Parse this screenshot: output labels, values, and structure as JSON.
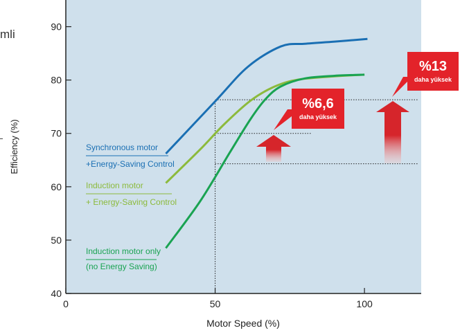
{
  "edge": {
    "partial_text": "mli"
  },
  "chart_data": {
    "type": "line",
    "title": "",
    "xlabel": "Motor Speed (%)",
    "ylabel": "Efficiency (%)",
    "xlim": [
      0,
      119
    ],
    "ylim": [
      40,
      95
    ],
    "grid": false,
    "x_ticks": [
      0,
      50,
      100
    ],
    "y_ticks": [
      40,
      50,
      60,
      70,
      80,
      90
    ],
    "colors": {
      "plot_bg": "#cfe0ec",
      "axis": "#222222",
      "callout": "#e3232a",
      "guide": "#222222"
    },
    "series": [
      {
        "color": "#1a6fb3",
        "label_lines": [
          "Synchronous motor",
          "+Energy-Saving Control"
        ],
        "points": [
          [
            33.5,
            66.2
          ],
          [
            50,
            76
          ],
          [
            61,
            82.5
          ],
          [
            72,
            86.3
          ],
          [
            80,
            86.8
          ],
          [
            90,
            87.2
          ],
          [
            101,
            87.7
          ]
        ]
      },
      {
        "color": "#8cba3c",
        "label_lines": [
          "Induction motor",
          "+ Energy-Saving Control"
        ],
        "points": [
          [
            33.5,
            60.7
          ],
          [
            45,
            67
          ],
          [
            53,
            71.7
          ],
          [
            62,
            76.2
          ],
          [
            70,
            78.8
          ],
          [
            78,
            80.1
          ],
          [
            90,
            80.7
          ],
          [
            100,
            81
          ]
        ]
      },
      {
        "color": "#1aa352",
        "label_lines": [
          "Induction motor only",
          "(no Energy Saving)"
        ],
        "points": [
          [
            33.5,
            48.5
          ],
          [
            45,
            57.3
          ],
          [
            55,
            66.5
          ],
          [
            62,
            72.8
          ],
          [
            67,
            76.5
          ],
          [
            72,
            78.8
          ],
          [
            80,
            80.3
          ],
          [
            90,
            80.8
          ],
          [
            100,
            81
          ]
        ]
      }
    ],
    "guides": [
      {
        "x1": 50,
        "y1": 76.3,
        "x2": 118,
        "y2": 76.3
      },
      {
        "x1": 50,
        "y1": 64.3,
        "x2": 118,
        "y2": 64.3
      },
      {
        "x1": 50,
        "y1": 70,
        "x2": 82,
        "y2": 70
      },
      {
        "x1": 50,
        "y1": 40,
        "x2": 50,
        "y2": 76.3
      }
    ],
    "callouts": [
      {
        "main": "%6,6",
        "sub": "daha yüksek"
      },
      {
        "main": "%13",
        "sub": "daha yüksek"
      }
    ]
  }
}
